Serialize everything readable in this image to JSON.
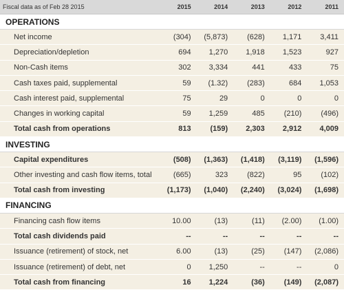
{
  "header": {
    "caption": "Fiscal data as of Feb 28 2015",
    "years": [
      "2015",
      "2014",
      "2013",
      "2012",
      "2011"
    ]
  },
  "sections": [
    {
      "title": "OPERATIONS",
      "rows": [
        {
          "label": "Net income",
          "bold": false,
          "values": [
            "(304)",
            "(5,873)",
            "(628)",
            "1,171",
            "3,411"
          ]
        },
        {
          "label": "Depreciation/depletion",
          "bold": false,
          "values": [
            "694",
            "1,270",
            "1,918",
            "1,523",
            "927"
          ]
        },
        {
          "label": "Non-Cash items",
          "bold": false,
          "values": [
            "302",
            "3,334",
            "441",
            "433",
            "75"
          ]
        },
        {
          "label": "Cash taxes paid, supplemental",
          "bold": false,
          "values": [
            "59",
            "(1.32)",
            "(283)",
            "684",
            "1,053"
          ]
        },
        {
          "label": "Cash interest paid, supplemental",
          "bold": false,
          "values": [
            "75",
            "29",
            "0",
            "0",
            "0"
          ]
        },
        {
          "label": "Changes in working capital",
          "bold": false,
          "values": [
            "59",
            "1,259",
            "485",
            "(210)",
            "(496)"
          ]
        },
        {
          "label": "Total cash from operations",
          "bold": true,
          "values": [
            "813",
            "(159)",
            "2,303",
            "2,912",
            "4,009"
          ]
        }
      ]
    },
    {
      "title": "INVESTING",
      "rows": [
        {
          "label": "Capital expenditures",
          "bold": true,
          "values": [
            "(508)",
            "(1,363)",
            "(1,418)",
            "(3,119)",
            "(1,596)"
          ]
        },
        {
          "label": "Other investing and cash flow items, total",
          "bold": false,
          "values": [
            "(665)",
            "323",
            "(822)",
            "95",
            "(102)"
          ]
        },
        {
          "label": "Total cash from investing",
          "bold": true,
          "values": [
            "(1,173)",
            "(1,040)",
            "(2,240)",
            "(3,024)",
            "(1,698)"
          ]
        }
      ]
    },
    {
      "title": "FINANCING",
      "rows": [
        {
          "label": "Financing cash flow items",
          "bold": false,
          "values": [
            "10.00",
            "(13)",
            "(11)",
            "(2.00)",
            "(1.00)"
          ]
        },
        {
          "label": "Total cash dividends paid",
          "bold": true,
          "values": [
            "--",
            "--",
            "--",
            "--",
            "--"
          ]
        },
        {
          "label": "Issuance (retirement) of stock, net",
          "bold": false,
          "values": [
            "6.00",
            "(13)",
            "(25)",
            "(147)",
            "(2,086)"
          ]
        },
        {
          "label": "Issuance (retirement) of debt, net",
          "bold": false,
          "values": [
            "0",
            "1,250",
            "--",
            "--",
            "0"
          ]
        },
        {
          "label": "Total cash from financing",
          "bold": true,
          "values": [
            "16",
            "1,224",
            "(36)",
            "(149)",
            "(2,087)"
          ]
        }
      ]
    }
  ]
}
